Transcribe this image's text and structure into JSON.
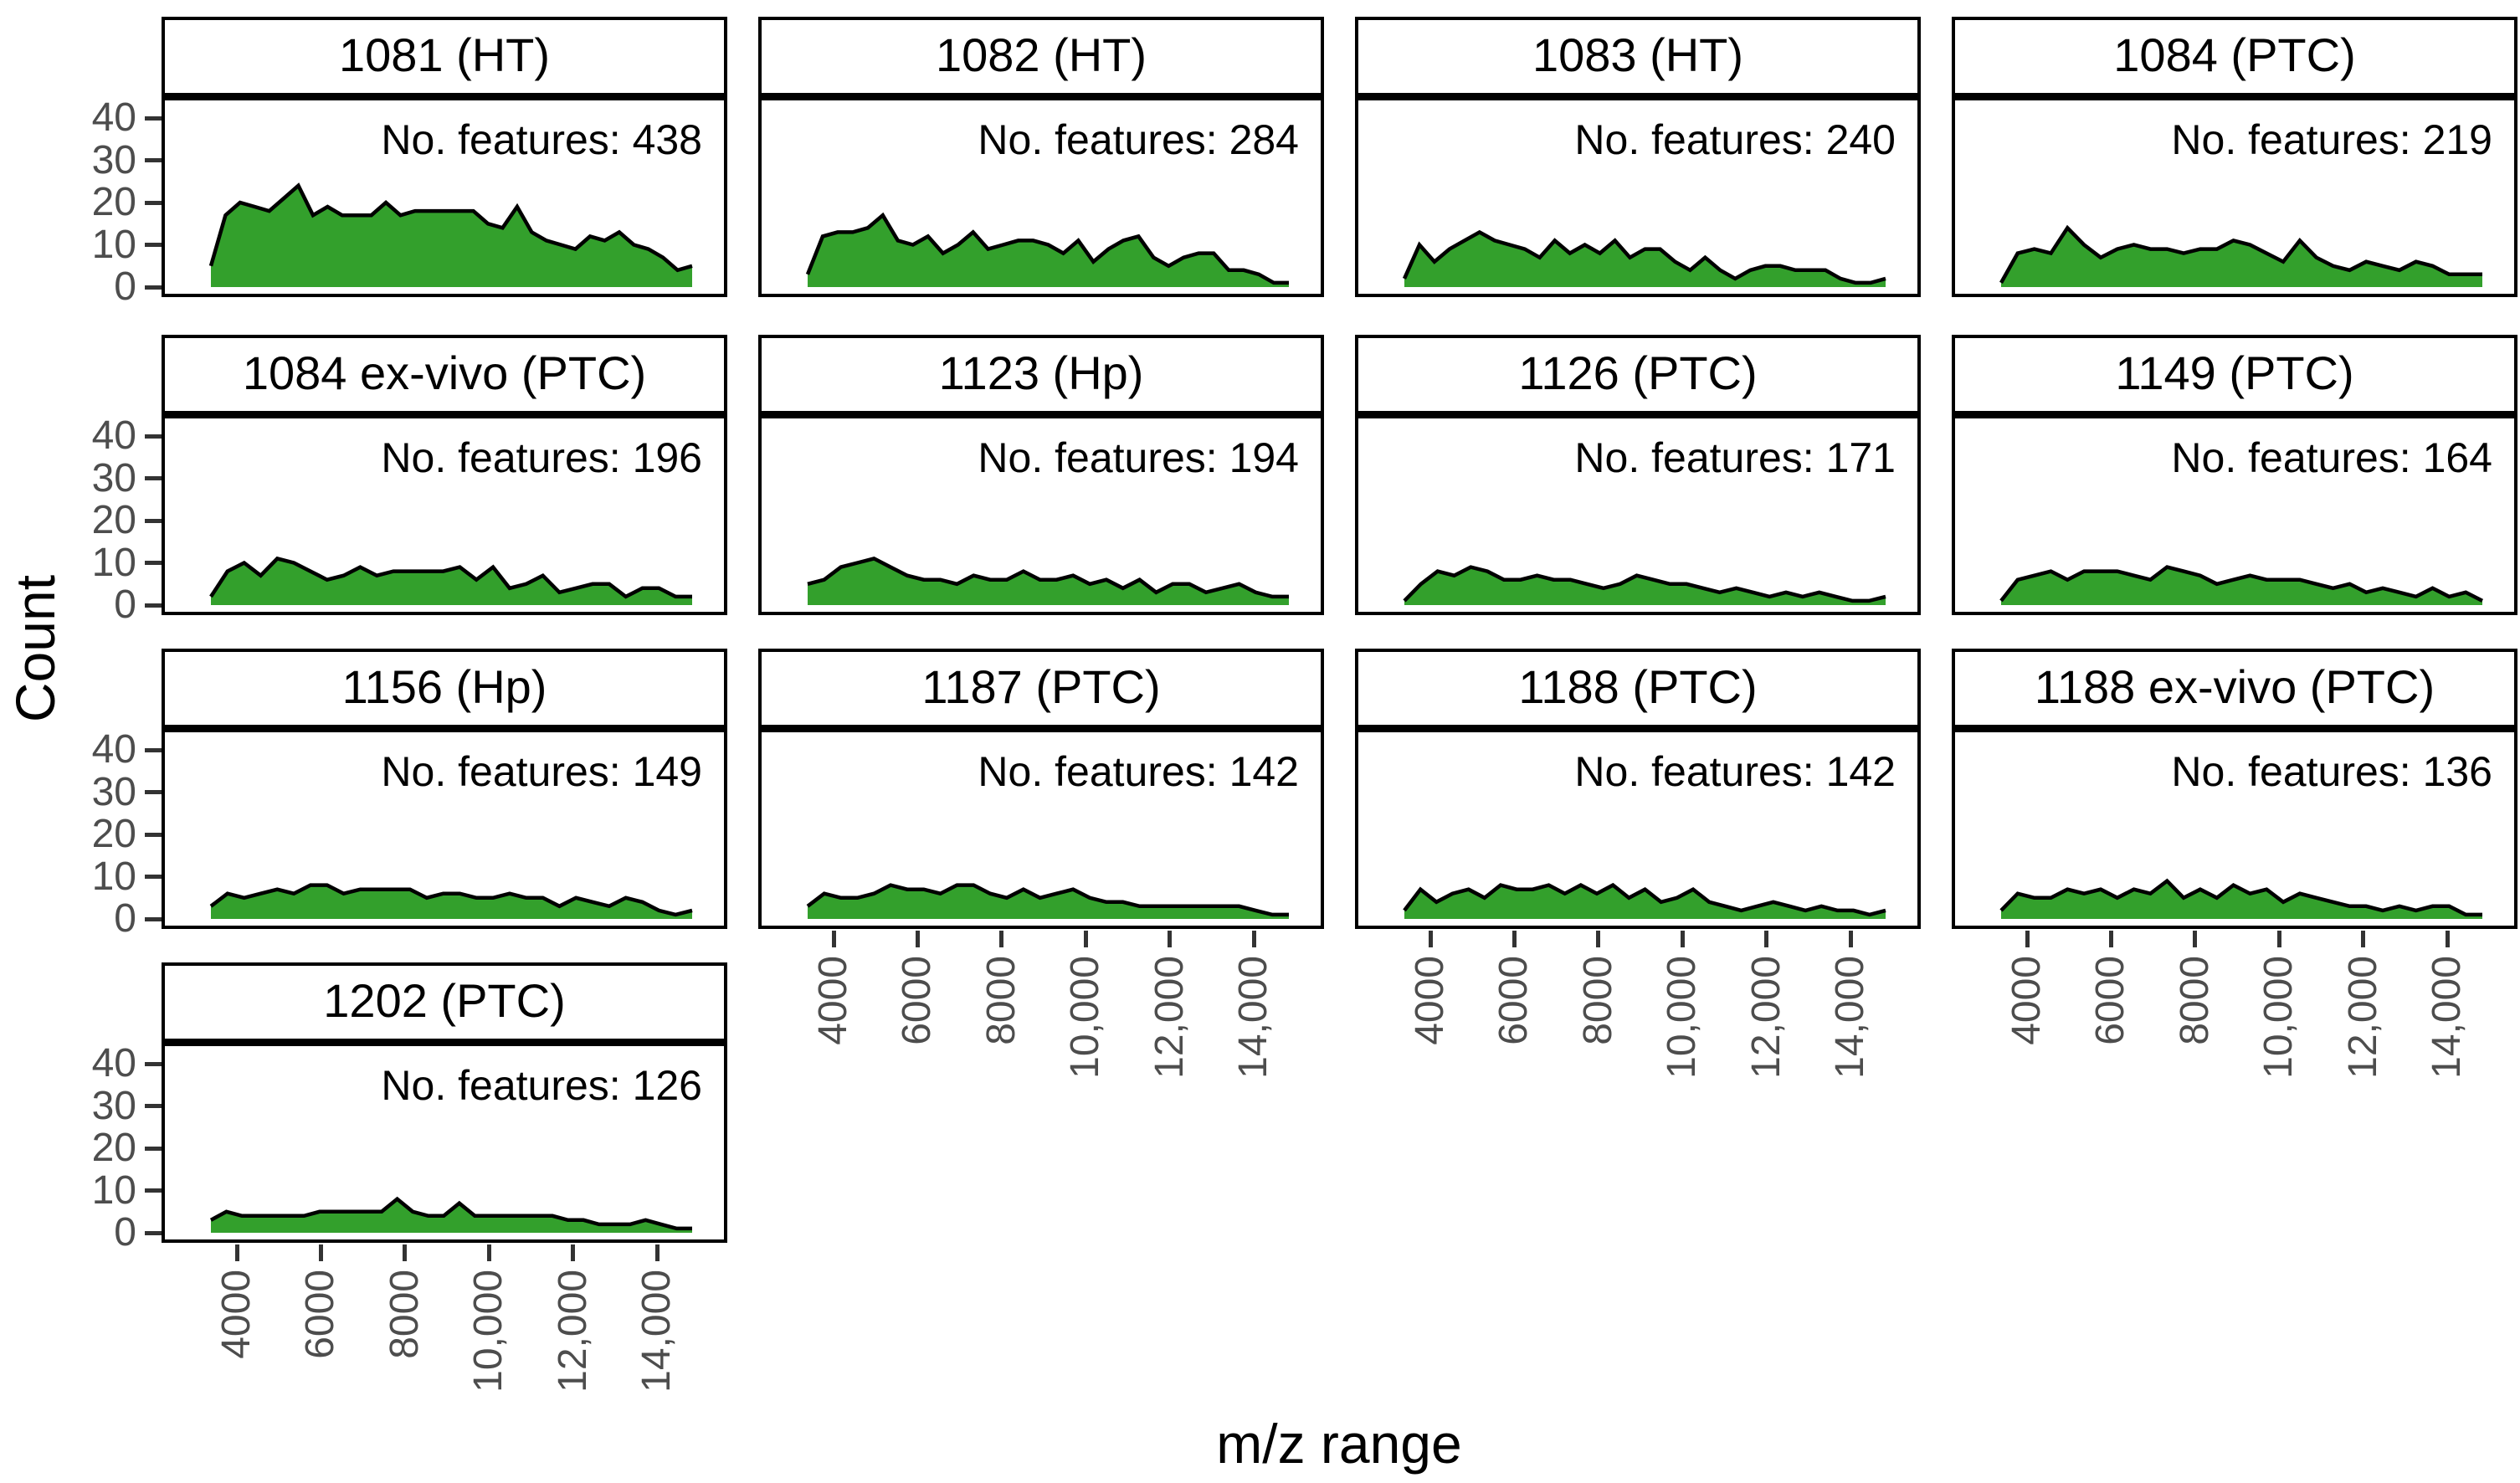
{
  "colors": {
    "area_fill": "#33a02c",
    "area_stroke": "#000000",
    "panel_border": "#000000",
    "tick_mark": "#333333",
    "tick_label": "#4d4d4d",
    "text": "#000000",
    "background": "#ffffff"
  },
  "chart_data": {
    "type": "area",
    "title": "",
    "xlabel": "m/z range",
    "ylabel": "Count",
    "x_ticks": [
      4000,
      6000,
      8000,
      10000,
      12000,
      14000
    ],
    "x_tick_labels": [
      "4000",
      "6000",
      "8000",
      "10,000",
      "12,000",
      "14,000"
    ],
    "y_ticks": [
      40,
      30,
      20,
      10,
      0
    ],
    "xlim": [
      3000,
      15400
    ],
    "ylim": [
      0,
      44
    ],
    "x_start": 3400,
    "x_end": 15000,
    "grid_lines": false,
    "legend_position": "none",
    "facet_grid": {
      "ncol": 4,
      "nrow": 4
    },
    "facets": [
      {
        "title": "1081 (HT)",
        "annotation": "No. features: 438",
        "no_features": 438,
        "counts": [
          5,
          17,
          20,
          19,
          18,
          21,
          24,
          17,
          19,
          17,
          17,
          17,
          20,
          17,
          18,
          18,
          18,
          18,
          18,
          15,
          14,
          19,
          13,
          11,
          10,
          9,
          12,
          11,
          13,
          10,
          9,
          7,
          4,
          5
        ]
      },
      {
        "title": "1082 (HT)",
        "annotation": "No. features: 284",
        "no_features": 284,
        "counts": [
          3,
          12,
          13,
          13,
          14,
          17,
          11,
          10,
          12,
          8,
          10,
          13,
          9,
          10,
          11,
          11,
          10,
          8,
          11,
          6,
          9,
          11,
          12,
          7,
          5,
          7,
          8,
          8,
          4,
          4,
          3,
          1,
          1
        ]
      },
      {
        "title": "1083 (HT)",
        "annotation": "No. features: 240",
        "no_features": 240,
        "counts": [
          2,
          10,
          6,
          9,
          11,
          13,
          11,
          10,
          9,
          7,
          11,
          8,
          10,
          8,
          11,
          7,
          9,
          9,
          6,
          4,
          7,
          4,
          2,
          4,
          5,
          5,
          4,
          4,
          4,
          2,
          1,
          1,
          2
        ]
      },
      {
        "title": "1084 (PTC)",
        "annotation": "No. features: 219",
        "no_features": 219,
        "counts": [
          1,
          8,
          9,
          8,
          14,
          10,
          7,
          9,
          10,
          9,
          9,
          8,
          9,
          9,
          11,
          10,
          8,
          6,
          11,
          7,
          5,
          4,
          6,
          5,
          4,
          6,
          5,
          3,
          3,
          3
        ]
      },
      {
        "title": "1084 ex-vivo (PTC)",
        "annotation": "No. features: 196",
        "no_features": 196,
        "counts": [
          2,
          8,
          10,
          7,
          11,
          10,
          8,
          6,
          7,
          9,
          7,
          8,
          8,
          8,
          8,
          9,
          6,
          9,
          4,
          5,
          7,
          3,
          4,
          5,
          5,
          2,
          4,
          4,
          2,
          2
        ]
      },
      {
        "title": "1123 (Hp)",
        "annotation": "No. features: 194",
        "no_features": 194,
        "counts": [
          5,
          6,
          9,
          10,
          11,
          9,
          7,
          6,
          6,
          5,
          7,
          6,
          6,
          8,
          6,
          6,
          7,
          5,
          6,
          4,
          6,
          3,
          5,
          5,
          3,
          4,
          5,
          3,
          2,
          2
        ]
      },
      {
        "title": "1126 (PTC)",
        "annotation": "No. features: 171",
        "no_features": 171,
        "counts": [
          1,
          5,
          8,
          7,
          9,
          8,
          6,
          6,
          7,
          6,
          6,
          5,
          4,
          5,
          7,
          6,
          5,
          5,
          4,
          3,
          4,
          3,
          2,
          3,
          2,
          3,
          2,
          1,
          1,
          2
        ]
      },
      {
        "title": "1149 (PTC)",
        "annotation": "No. features: 164",
        "no_features": 164,
        "counts": [
          1,
          6,
          7,
          8,
          6,
          8,
          8,
          8,
          7,
          6,
          9,
          8,
          7,
          5,
          6,
          7,
          6,
          6,
          6,
          5,
          4,
          5,
          3,
          4,
          3,
          2,
          4,
          2,
          3,
          1
        ]
      },
      {
        "title": "1156 (Hp)",
        "annotation": "No. features: 149",
        "no_features": 149,
        "counts": [
          3,
          6,
          5,
          6,
          7,
          6,
          8,
          8,
          6,
          7,
          7,
          7,
          7,
          5,
          6,
          6,
          5,
          5,
          6,
          5,
          5,
          3,
          5,
          4,
          3,
          5,
          4,
          2,
          1,
          2
        ]
      },
      {
        "title": "1187 (PTC)",
        "annotation": "No. features: 142",
        "no_features": 142,
        "counts": [
          3,
          6,
          5,
          5,
          6,
          8,
          7,
          7,
          6,
          8,
          8,
          6,
          5,
          7,
          5,
          6,
          7,
          5,
          4,
          4,
          3,
          3,
          3,
          3,
          3,
          3,
          3,
          2,
          1,
          1
        ]
      },
      {
        "title": "1188 (PTC)",
        "annotation": "No. features: 142",
        "no_features": 142,
        "counts": [
          2,
          7,
          4,
          6,
          7,
          5,
          8,
          7,
          7,
          8,
          6,
          8,
          6,
          8,
          5,
          7,
          4,
          5,
          7,
          4,
          3,
          2,
          3,
          4,
          3,
          2,
          3,
          2,
          2,
          1,
          2
        ]
      },
      {
        "title": "1188 ex-vivo (PTC)",
        "annotation": "No. features: 136",
        "no_features": 136,
        "counts": [
          2,
          6,
          5,
          5,
          7,
          6,
          7,
          5,
          7,
          6,
          9,
          5,
          7,
          5,
          8,
          6,
          7,
          4,
          6,
          5,
          4,
          3,
          3,
          2,
          3,
          2,
          3,
          3,
          1,
          1
        ]
      },
      {
        "title": "1202 (PTC)",
        "annotation": "No. features: 126",
        "no_features": 126,
        "counts": [
          3,
          5,
          4,
          4,
          4,
          4,
          4,
          5,
          5,
          5,
          5,
          5,
          8,
          5,
          4,
          4,
          7,
          4,
          4,
          4,
          4,
          4,
          4,
          3,
          3,
          2,
          2,
          2,
          3,
          2,
          1,
          1
        ]
      }
    ]
  }
}
